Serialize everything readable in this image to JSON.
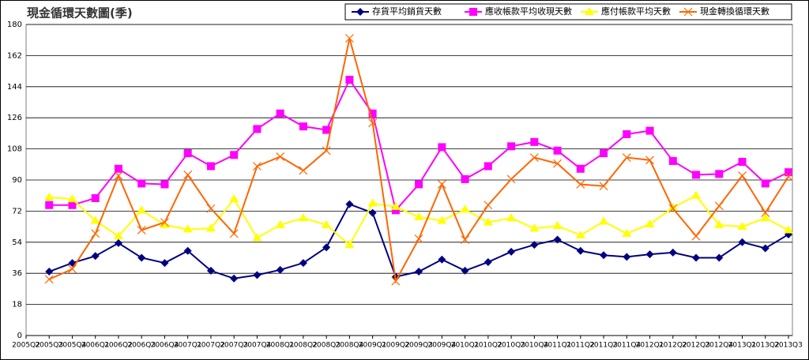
{
  "chart_data": {
    "type": "line",
    "title": "現金循環天數圖(季)",
    "categories": [
      "2005Q2",
      "2005Q3",
      "2005Q4",
      "2006Q1",
      "2006Q2",
      "2006Q3",
      "2006Q4",
      "2007Q1",
      "2007Q2",
      "2007Q3",
      "2007Q4",
      "2008Q1",
      "2008Q2",
      "2008Q3",
      "2008Q4",
      "2009Q1",
      "2009Q2",
      "2009Q3",
      "2009Q4",
      "2010Q1",
      "2010Q2",
      "2010Q3",
      "2010Q4",
      "2011Q1",
      "2011Q2",
      "2011Q3",
      "2011Q4",
      "2012Q1",
      "2012Q2",
      "2012Q3",
      "2012Q4",
      "2013Q1",
      "2013Q2",
      "2013Q3"
    ],
    "series": [
      {
        "name": "存貨平均銷貨天數",
        "color": "#000080",
        "marker": "diamond",
        "values": [
          null,
          37,
          42,
          46,
          53.5,
          45,
          42,
          49,
          37.5,
          33,
          35,
          38,
          42,
          51,
          76,
          71,
          34,
          37,
          44,
          37.5,
          42.5,
          48.5,
          52.5,
          55.5,
          49,
          46.5,
          45.5,
          47,
          48,
          45,
          45,
          54,
          50.5,
          58.5
        ]
      },
      {
        "name": "應收帳款平均收現天數",
        "color": "#ff00ff",
        "marker": "square",
        "values": [
          null,
          75.5,
          75.5,
          79.5,
          96.5,
          88,
          87.5,
          105.5,
          98,
          104.5,
          119.5,
          128.5,
          121,
          119,
          148,
          128.5,
          72.5,
          87.5,
          109,
          90.5,
          98,
          109.5,
          112,
          107,
          96.5,
          105.5,
          116.5,
          118.5,
          101,
          93,
          93.5,
          100.5,
          88,
          94.5
        ]
      },
      {
        "name": "應付帳款平均天數",
        "color": "#ffff00",
        "marker": "triangle",
        "values": [
          null,
          80,
          79,
          66.5,
          57.5,
          72.5,
          64,
          61.5,
          62,
          79,
          56.5,
          64,
          68,
          64,
          52.5,
          76.5,
          74.5,
          68.5,
          66.5,
          73,
          65.5,
          68,
          62,
          63.5,
          58,
          66,
          59,
          64.5,
          74,
          81,
          64,
          63,
          68,
          61
        ]
      },
      {
        "name": "現金轉換循環天數",
        "color": "#ff6600",
        "marker": "x",
        "values": [
          null,
          32.5,
          38.5,
          59,
          92.5,
          61,
          65.5,
          93,
          73.5,
          59,
          98,
          103.5,
          95.5,
          107,
          172,
          123,
          31.5,
          56,
          87.5,
          55.5,
          75.5,
          90.5,
          103,
          99.5,
          87.5,
          86.5,
          103,
          101.5,
          73.5,
          57.5,
          75,
          92.5,
          71,
          92
        ]
      }
    ],
    "ylim": [
      0,
      180
    ],
    "yticks": [
      0,
      18,
      36,
      54,
      72,
      90,
      108,
      126,
      144,
      162,
      180
    ],
    "grid": true,
    "legend": "top-right"
  }
}
